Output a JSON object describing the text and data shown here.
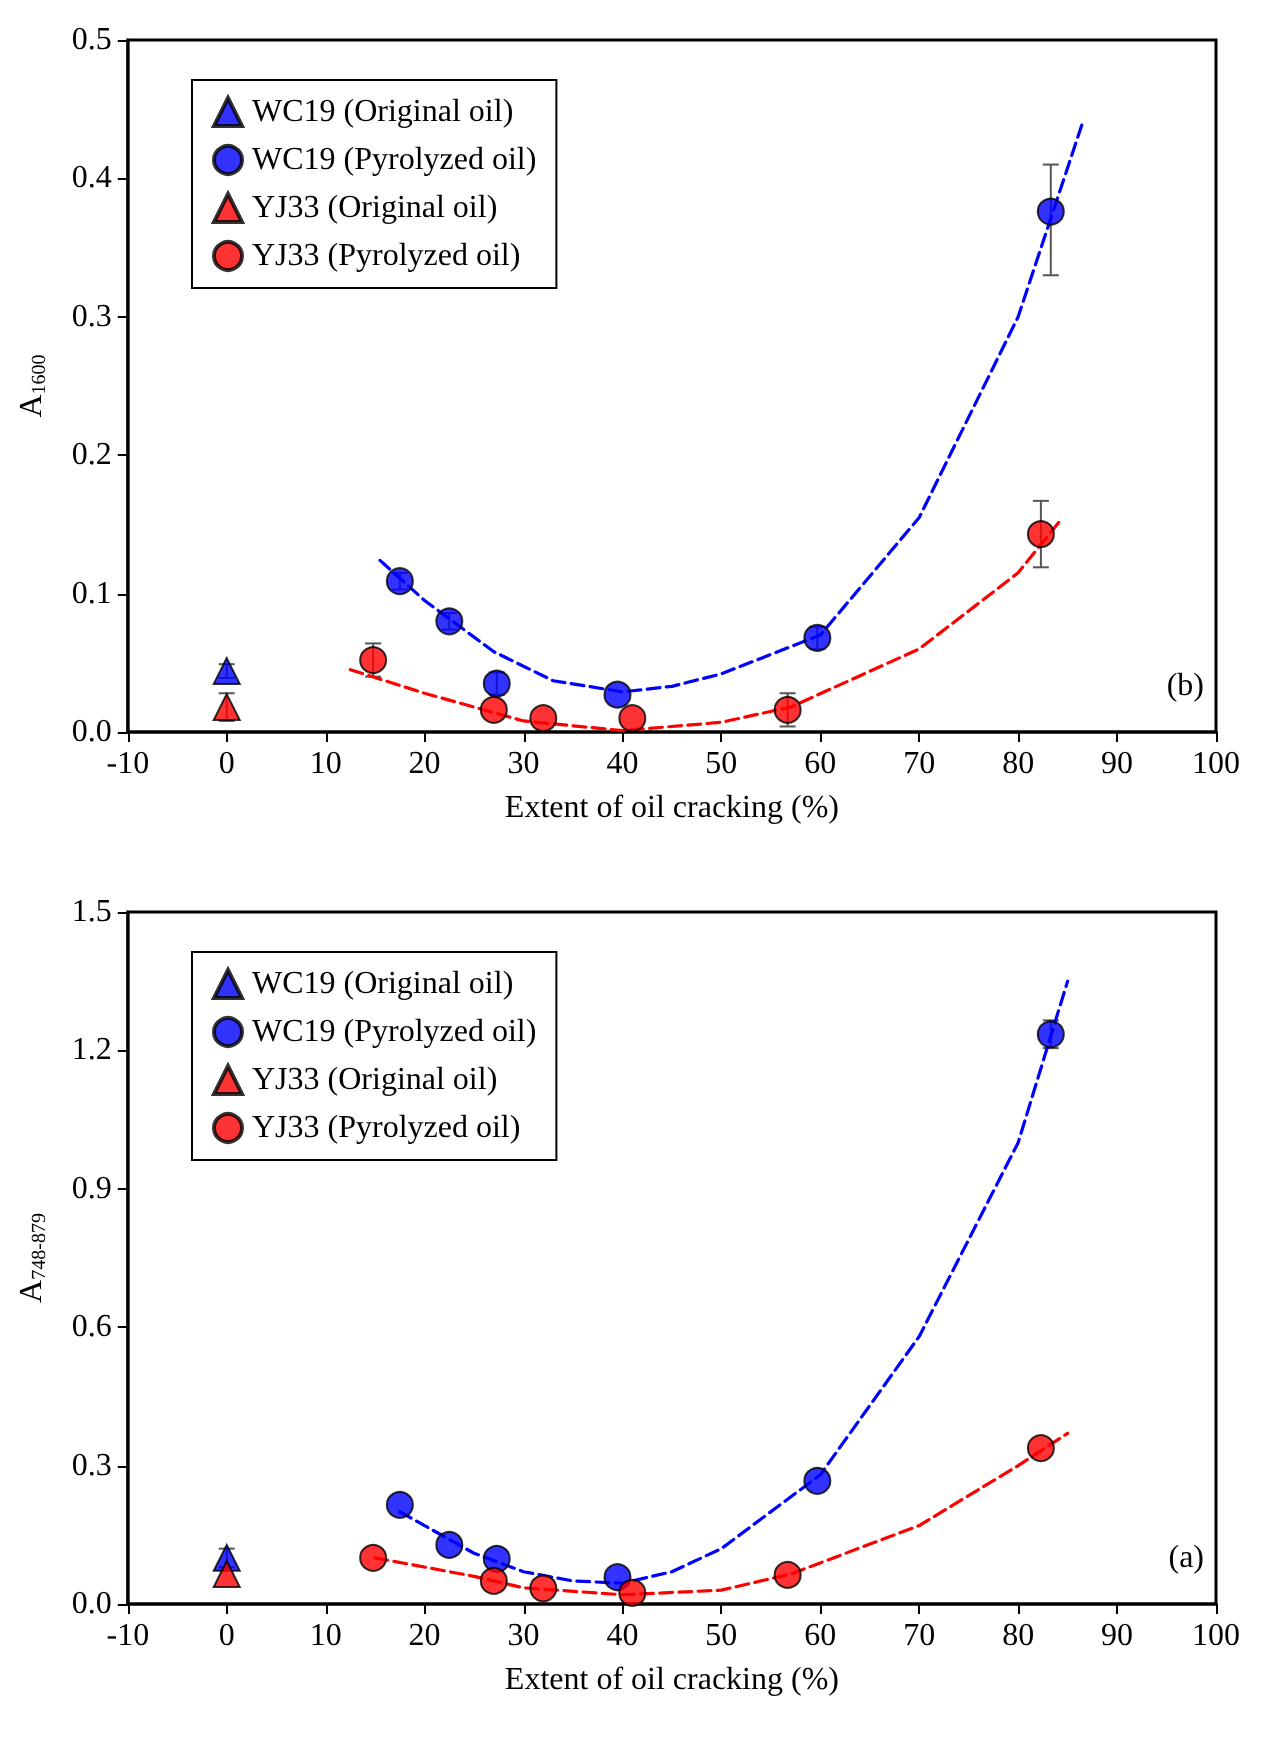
{
  "chart_data": [
    {
      "type": "scatter",
      "xlabel": "Extent of oil cracking (%)",
      "ylabel": "A$_{1600}$",
      "annotations": [
        "(b)"
      ],
      "xlim": [
        -10,
        100
      ],
      "xticks": [
        -10,
        0,
        10,
        20,
        30,
        40,
        50,
        60,
        70,
        80,
        90,
        100
      ],
      "ylim": [
        0,
        0.5
      ],
      "yticks": [
        {
          "value": 0,
          "label": "0.0"
        },
        0.1,
        0.2,
        0.3,
        0.4,
        0.5
      ],
      "grid": false,
      "legend": "top left",
      "series": [
        {
          "name": "WC19 (Original oil)",
          "color": "#0000ff",
          "marker": "triangle",
          "x": [
            0
          ],
          "values": [
            0.044
          ],
          "errors": [
            0.005
          ]
        },
        {
          "name": "WC19 (Pyrolyzed oil)",
          "color": "#0000ff",
          "marker": "circle",
          "x": [
            17.5,
            22.5,
            27.3,
            39.5,
            59.7,
            83.3
          ],
          "values": [
            0.109,
            0.08,
            0.035,
            0.027,
            0.068,
            0.376
          ],
          "errors": [
            0.006,
            0.006,
            0.008,
            null,
            0.008,
            [
              0.33,
              0.41
            ]
          ]
        },
        {
          "name": "YJ33 (Original oil)",
          "color": "#ff0000",
          "marker": "triangle",
          "x": [
            0
          ],
          "values": [
            0.018
          ],
          "errors": [
            0.01
          ]
        },
        {
          "name": "YJ33 (Pyrolyzed oil)",
          "color": "#ff0000",
          "marker": "circle",
          "x": [
            14.8,
            27,
            32,
            41,
            56.7,
            82.3
          ],
          "values": [
            0.052,
            0.016,
            0.01,
            0.01,
            0.016,
            0.143
          ],
          "errors": [
            0.012,
            null,
            null,
            null,
            0.012,
            0.024
          ]
        },
        {
          "type": "line",
          "color": "#0000ff",
          "line_style": "dashed",
          "marker": "none",
          "x": [
            15.5,
            20,
            27,
            33,
            40,
            45,
            50,
            60,
            70,
            80,
            86.5
          ],
          "values": [
            0.124,
            0.095,
            0.058,
            0.037,
            0.029,
            0.033,
            0.042,
            0.07,
            0.155,
            0.3,
            0.44
          ]
        },
        {
          "type": "line",
          "color": "#ff0000",
          "line_style": "dashed",
          "marker": "none",
          "x": [
            12.5,
            20,
            30,
            40,
            50,
            57,
            70,
            80,
            84.5
          ],
          "values": [
            0.045,
            0.028,
            0.008,
            0.001,
            0.007,
            0.018,
            0.06,
            0.115,
            0.155
          ]
        }
      ]
    },
    {
      "type": "scatter",
      "xlabel": "Extent of oil cracking (%)",
      "ylabel": "A$_{748-879}$",
      "annotations": [
        "(a)"
      ],
      "xlim": [
        -10,
        100
      ],
      "xticks": [
        -10,
        0,
        10,
        20,
        30,
        40,
        50,
        60,
        70,
        80,
        90,
        100
      ],
      "ylim": [
        0,
        1.5
      ],
      "yticks": [
        {
          "value": 0,
          "label": "0.0"
        },
        0.3,
        0.6,
        0.9,
        1.2,
        1.5
      ],
      "grid": false,
      "legend": "top left",
      "series": [
        {
          "name": "WC19 (Original oil)",
          "color": "#0000ff",
          "marker": "triangle",
          "x": [
            0
          ],
          "values": [
            0.1
          ],
          "errors": [
            0.02
          ]
        },
        {
          "name": "WC19 (Pyrolyzed oil)",
          "color": "#0000ff",
          "marker": "circle",
          "x": [
            17.5,
            22.5,
            27.3,
            39.5,
            59.7,
            83.3
          ],
          "values": [
            0.215,
            0.128,
            0.098,
            0.058,
            0.267,
            1.235
          ],
          "errors": [
            null,
            null,
            null,
            null,
            null,
            0.03
          ]
        },
        {
          "name": "YJ33 (Original oil)",
          "color": "#ff0000",
          "marker": "triangle",
          "x": [
            0
          ],
          "values": [
            0.065
          ]
        },
        {
          "name": "YJ33 (Pyrolyzed oil)",
          "color": "#ff0000",
          "marker": "circle",
          "x": [
            14.8,
            27,
            32,
            41,
            56.7,
            82.3
          ],
          "values": [
            0.1,
            0.05,
            0.034,
            0.024,
            0.063,
            0.338
          ]
        },
        {
          "type": "line",
          "color": "#0000ff",
          "line_style": "dashed",
          "marker": "none",
          "x": [
            17.5,
            25,
            30,
            35,
            40,
            45,
            50,
            60,
            70,
            80,
            85
          ],
          "values": [
            0.2,
            0.11,
            0.07,
            0.05,
            0.045,
            0.07,
            0.12,
            0.28,
            0.58,
            1.0,
            1.35
          ]
        },
        {
          "type": "line",
          "color": "#ff0000",
          "line_style": "dashed",
          "marker": "none",
          "x": [
            15,
            25,
            30,
            40,
            50,
            57,
            70,
            80,
            85
          ],
          "values": [
            0.1,
            0.06,
            0.035,
            0.02,
            0.03,
            0.065,
            0.17,
            0.3,
            0.37
          ]
        }
      ]
    }
  ]
}
